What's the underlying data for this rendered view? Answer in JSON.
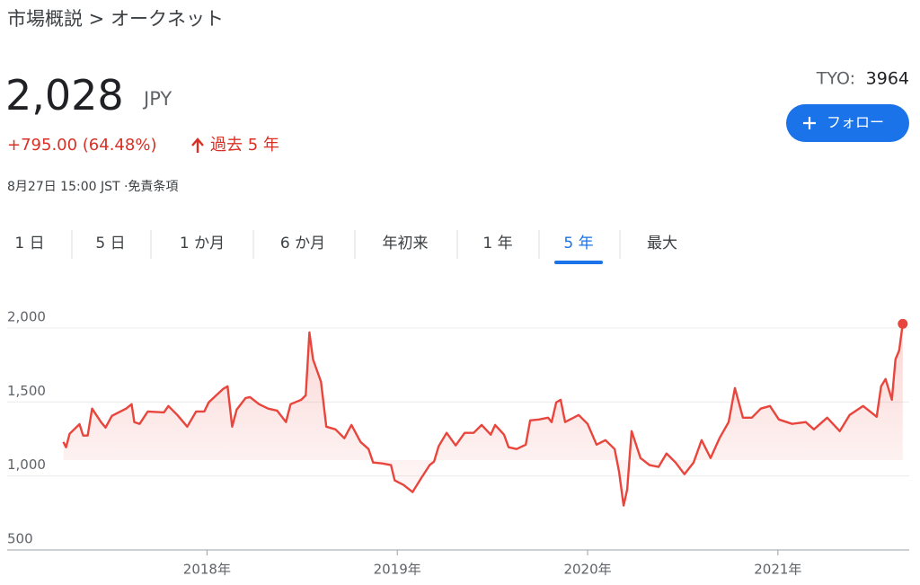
{
  "header": {
    "breadcrumb": "市場概説 > オークネット",
    "price": "2,028",
    "currency": "JPY",
    "change": "+795.00 (64.48%)",
    "period": "過去 5 年",
    "timestamp": "8月27日 15:00 JST ·免責条項",
    "exchange": "TYO:",
    "ticker": "3964",
    "follow": "フォロー"
  },
  "tabs": {
    "items": [
      "1 日",
      "5 日",
      "1 か月",
      "6 か月",
      "年初来",
      "1 年",
      "5 年",
      "最大"
    ],
    "selected": 6
  },
  "chart_data": {
    "type": "line",
    "color": "#e8453c",
    "x": [
      2017.245,
      2017.259,
      2017.278,
      2017.33,
      2017.349,
      2017.373,
      2017.396,
      2017.443,
      2017.467,
      2017.5,
      2017.575,
      2017.604,
      2017.618,
      2017.646,
      2017.689,
      2017.774,
      2017.797,
      2017.844,
      2017.896,
      2017.943,
      2017.986,
      2018.009,
      2018.085,
      2018.108,
      2018.132,
      2018.156,
      2018.203,
      2018.226,
      2018.274,
      2018.321,
      2018.368,
      2018.415,
      2018.439,
      2018.495,
      2018.519,
      2018.538,
      2018.557,
      2018.599,
      2018.627,
      2018.675,
      2018.722,
      2018.741,
      2018.759,
      2018.807,
      2018.849,
      2018.873,
      2018.92,
      2018.967,
      2018.986,
      2019.033,
      2019.08,
      2019.127,
      2019.17,
      2019.193,
      2019.217,
      2019.259,
      2019.307,
      2019.354,
      2019.401,
      2019.443,
      2019.491,
      2019.514,
      2019.561,
      2019.585,
      2019.627,
      2019.675,
      2019.698,
      2019.745,
      2019.792,
      2019.811,
      2019.835,
      2019.858,
      2019.882,
      2019.953,
      2020.0,
      2020.047,
      2020.094,
      2020.142,
      2020.165,
      2020.189,
      2020.208,
      2020.231,
      2020.278,
      2020.325,
      2020.373,
      2020.415,
      2020.462,
      2020.509,
      2020.557,
      2020.599,
      2020.646,
      2020.693,
      2020.741,
      2020.774,
      2020.816,
      2020.863,
      2020.91,
      2020.958,
      2021.005,
      2021.075,
      2021.146,
      2021.189,
      2021.259,
      2021.325,
      2021.377,
      2021.448,
      2021.519,
      2021.542,
      2021.566,
      2021.599,
      2021.618,
      2021.637,
      2021.656
    ],
    "values": [
      1230,
      1194,
      1285,
      1350,
      1273,
      1273,
      1455,
      1364,
      1327,
      1406,
      1455,
      1485,
      1364,
      1352,
      1436,
      1430,
      1473,
      1412,
      1333,
      1436,
      1436,
      1497,
      1588,
      1606,
      1333,
      1448,
      1527,
      1533,
      1485,
      1455,
      1442,
      1364,
      1485,
      1515,
      1545,
      1970,
      1788,
      1636,
      1333,
      1315,
      1255,
      1303,
      1345,
      1230,
      1182,
      1091,
      1085,
      1073,
      970,
      939,
      891,
      988,
      1073,
      1097,
      1200,
      1291,
      1206,
      1291,
      1291,
      1345,
      1279,
      1345,
      1279,
      1194,
      1182,
      1212,
      1376,
      1382,
      1394,
      1364,
      1497,
      1515,
      1364,
      1412,
      1352,
      1212,
      1242,
      1182,
      1030,
      800,
      909,
      1303,
      1121,
      1073,
      1061,
      1152,
      1091,
      1012,
      1091,
      1242,
      1121,
      1255,
      1364,
      1594,
      1394,
      1394,
      1455,
      1473,
      1382,
      1352,
      1364,
      1315,
      1394,
      1303,
      1412,
      1473,
      1400,
      1606,
      1655,
      1515,
      1788,
      1848,
      2028
    ],
    "xlim": [
      2016.95,
      2021.69
    ],
    "xticks": [
      {
        "value": 2018,
        "label": "2018年"
      },
      {
        "value": 2019,
        "label": "2019年"
      },
      {
        "value": 2020,
        "label": "2020年"
      },
      {
        "value": 2021,
        "label": "2021年"
      }
    ],
    "ylim": [
      500,
      2000
    ],
    "yticks": [
      {
        "value": 500,
        "label": "500"
      },
      {
        "value": 1000,
        "label": "1,000"
      },
      {
        "value": 1500,
        "label": "1,500"
      },
      {
        "value": 2000,
        "label": "2,000"
      }
    ],
    "grid": true
  }
}
